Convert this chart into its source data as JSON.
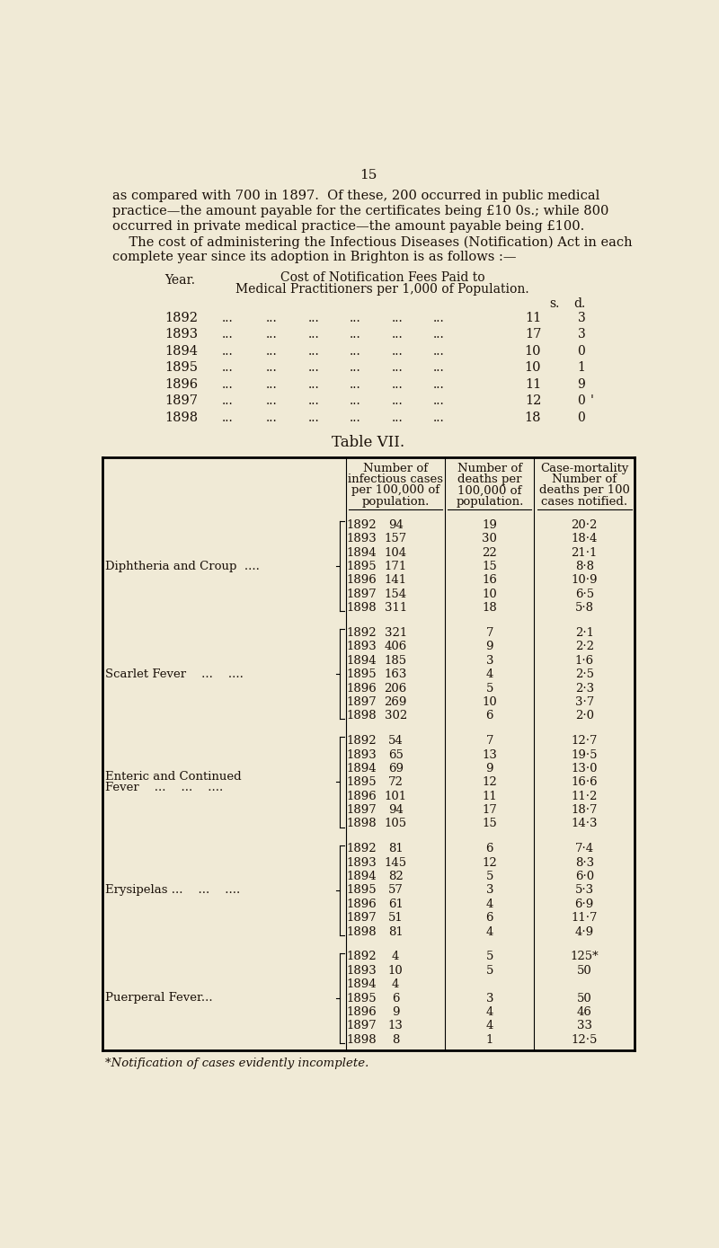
{
  "bg_color": "#f0ead6",
  "page_number": "15",
  "intro_lines": [
    "as compared with 700 in 1897.  Of these, 200 occurred in public medical",
    "practice—the amount payable for the certificates being £10 0s.; while 800",
    "occurred in private medical practice—the amount payable being £100.",
    "    The cost of administering the Infectious Diseases (Notification) Act in each",
    "complete year since its adoption in Brighton is as follows :—"
  ],
  "cost_title1": "Cost of Notification Fees Paid to",
  "cost_title2": "Medical Practitioners per 1,000 of Population.",
  "year_label": "Year.",
  "sd_header": [
    "s.",
    "d."
  ],
  "cost_rows": [
    {
      "year": "1892",
      "s": "11",
      "d": "3"
    },
    {
      "year": "1893",
      "s": "17",
      "d": "3"
    },
    {
      "year": "1894",
      "s": "10",
      "d": "0"
    },
    {
      "year": "1895",
      "s": "10",
      "d": "1"
    },
    {
      "year": "1896",
      "s": "11",
      "d": "9"
    },
    {
      "year": "1897",
      "s": "12",
      "d": "0"
    },
    {
      "year": "1898",
      "s": "18",
      "d": "0"
    }
  ],
  "table_title": "Table VII.",
  "col_headers": [
    "Number of\ninfectious cases\nper 100,000 of\npopulation.",
    "Number of\ndeaths per\n100,000 of\npopulation.",
    "Case-mortality\nNumber of\ndeaths per 100\ncases notified."
  ],
  "disease_groups": [
    {
      "name_lines": [
        "Diphtheria and Croup  ...."
      ],
      "rows": [
        {
          "year": "1892",
          "cases": "94",
          "deaths": "19",
          "cm": "20·2"
        },
        {
          "year": "1893",
          "cases": "157",
          "deaths": "30",
          "cm": "18·4"
        },
        {
          "year": "1894",
          "cases": "104",
          "deaths": "22",
          "cm": "21·1"
        },
        {
          "year": "1895",
          "cases": "171",
          "deaths": "15",
          "cm": "8·8"
        },
        {
          "year": "1896",
          "cases": "141",
          "deaths": "16",
          "cm": "10·9"
        },
        {
          "year": "1897",
          "cases": "154",
          "deaths": "10",
          "cm": "6·5"
        },
        {
          "year": "1898",
          "cases": "311",
          "deaths": "18",
          "cm": "5·8"
        }
      ]
    },
    {
      "name_lines": [
        "Scarlet Fever    ...    ...."
      ],
      "rows": [
        {
          "year": "1892",
          "cases": "321",
          "deaths": "7",
          "cm": "2·1"
        },
        {
          "year": "1893",
          "cases": "406",
          "deaths": "9",
          "cm": "2·2"
        },
        {
          "year": "1894",
          "cases": "185",
          "deaths": "3",
          "cm": "1·6"
        },
        {
          "year": "1895",
          "cases": "163",
          "deaths": "4",
          "cm": "2·5"
        },
        {
          "year": "1896",
          "cases": "206",
          "deaths": "5",
          "cm": "2·3"
        },
        {
          "year": "1897",
          "cases": "269",
          "deaths": "10",
          "cm": "3·7"
        },
        {
          "year": "1898",
          "cases": "302",
          "deaths": "6",
          "cm": "2·0"
        }
      ]
    },
    {
      "name_lines": [
        "Enteric and Continued",
        "Fever    ...    ...    ...."
      ],
      "rows": [
        {
          "year": "1892",
          "cases": "54",
          "deaths": "7",
          "cm": "12·7"
        },
        {
          "year": "1893",
          "cases": "65",
          "deaths": "13",
          "cm": "19·5"
        },
        {
          "year": "1894",
          "cases": "69",
          "deaths": "9",
          "cm": "13·0"
        },
        {
          "year": "1895",
          "cases": "72",
          "deaths": "12",
          "cm": "16·6"
        },
        {
          "year": "1896",
          "cases": "101",
          "deaths": "11",
          "cm": "11·2"
        },
        {
          "year": "1897",
          "cases": "94",
          "deaths": "17",
          "cm": "18·7"
        },
        {
          "year": "1898",
          "cases": "105",
          "deaths": "15",
          "cm": "14·3"
        }
      ]
    },
    {
      "name_lines": [
        "Erysipelas ...    ...    ...."
      ],
      "rows": [
        {
          "year": "1892",
          "cases": "81",
          "deaths": "6",
          "cm": "7·4"
        },
        {
          "year": "1893",
          "cases": "145",
          "deaths": "12",
          "cm": "8·3"
        },
        {
          "year": "1894",
          "cases": "82",
          "deaths": "5",
          "cm": "6·0"
        },
        {
          "year": "1895",
          "cases": "57",
          "deaths": "3",
          "cm": "5·3"
        },
        {
          "year": "1896",
          "cases": "61",
          "deaths": "4",
          "cm": "6·9"
        },
        {
          "year": "1897",
          "cases": "51",
          "deaths": "6",
          "cm": "11·7"
        },
        {
          "year": "1898",
          "cases": "81",
          "deaths": "4",
          "cm": "4·9"
        }
      ]
    },
    {
      "name_lines": [
        "Puerperal Fever..."
      ],
      "rows": [
        {
          "year": "1892",
          "cases": "4",
          "deaths": "5",
          "cm": "125*"
        },
        {
          "year": "1893",
          "cases": "10",
          "deaths": "5",
          "cm": "50"
        },
        {
          "year": "1894",
          "cases": "4",
          "deaths": "",
          "cm": ""
        },
        {
          "year": "1895",
          "cases": "6",
          "deaths": "3",
          "cm": "50"
        },
        {
          "year": "1896",
          "cases": "9",
          "deaths": "4",
          "cm": "46"
        },
        {
          "year": "1897",
          "cases": "13",
          "deaths": "4",
          "cm": "33"
        },
        {
          "year": "1898",
          "cases": "8",
          "deaths": "1",
          "cm": "12·5"
        }
      ]
    }
  ],
  "footnote": "*Notification of cases evidently incomplete."
}
